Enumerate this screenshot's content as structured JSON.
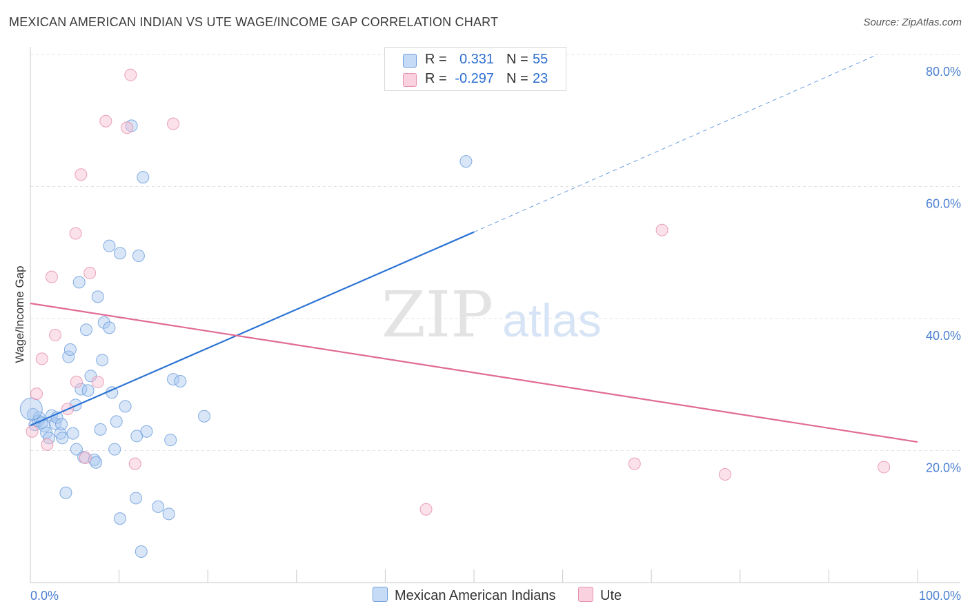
{
  "title": "MEXICAN AMERICAN INDIAN VS UTE WAGE/INCOME GAP CORRELATION CHART",
  "source": "Source: ZipAtlas.com",
  "watermark": {
    "zip": "ZIP",
    "atlas": "atlas"
  },
  "colors": {
    "blue_fill": "#a9c8ef",
    "blue_stroke": "#6f9fdc",
    "blue_line": "#2a72d4",
    "pink_fill": "#f5bdd0",
    "pink_stroke": "#e890ad",
    "pink_line": "#e06a96",
    "tick_text": "#4a7fd0",
    "grid": "#e2e2e2"
  },
  "legend": {
    "series": [
      {
        "r_label": "R =",
        "r_value": "0.331",
        "n_label": "N =",
        "n_value": "55",
        "swatch": "blue"
      },
      {
        "r_label": "R =",
        "r_value": "-0.297",
        "n_label": "N =",
        "n_value": "23",
        "swatch": "pink"
      }
    ]
  },
  "bottom_legend": [
    "Mexican American Indians",
    "Ute"
  ],
  "chart_data": {
    "type": "scatter",
    "title": "MEXICAN AMERICAN INDIAN VS UTE WAGE/INCOME GAP CORRELATION CHART",
    "xlabel": "",
    "ylabel": "Wage/Income Gap",
    "xlim": [
      0,
      100
    ],
    "ylim": [
      0,
      80
    ],
    "x_tick_labels": [
      "0.0%",
      "100.0%"
    ],
    "y_ticks": [
      20,
      40,
      60,
      80
    ],
    "y_tick_labels": [
      "20.0%",
      "40.0%",
      "60.0%",
      "80.0%"
    ],
    "grid": true,
    "legend_position": "top-center",
    "series": [
      {
        "name": "Mexican American Indians",
        "color": "blue",
        "r": 0.331,
        "n": 55,
        "trend": {
          "x0": 0,
          "y0": 23.8,
          "x1": 50,
          "y1": 53.1,
          "dashed_to_x": 95.5,
          "dashed_to_y": 80.0
        },
        "points": [
          [
            0.3,
            25.5
          ],
          [
            0.5,
            23.9
          ],
          [
            0.9,
            24.5
          ],
          [
            1.0,
            25.0
          ],
          [
            1.3,
            24.2
          ],
          [
            1.6,
            23.7
          ],
          [
            1.8,
            22.7
          ],
          [
            2.1,
            21.9
          ],
          [
            2.4,
            25.3
          ],
          [
            2.8,
            24.1
          ],
          [
            3.0,
            25.0
          ],
          [
            3.4,
            22.6
          ],
          [
            3.6,
            21.9
          ],
          [
            3.5,
            24.0
          ],
          [
            4.0,
            13.6
          ],
          [
            4.3,
            34.2
          ],
          [
            4.5,
            35.3
          ],
          [
            4.8,
            22.6
          ],
          [
            5.1,
            26.9
          ],
          [
            5.2,
            20.2
          ],
          [
            5.5,
            45.5
          ],
          [
            5.7,
            29.3
          ],
          [
            6.0,
            19.0
          ],
          [
            6.3,
            38.3
          ],
          [
            6.5,
            29.1
          ],
          [
            6.8,
            31.3
          ],
          [
            7.2,
            18.6
          ],
          [
            7.4,
            18.2
          ],
          [
            7.6,
            43.3
          ],
          [
            7.9,
            23.2
          ],
          [
            8.1,
            33.7
          ],
          [
            8.3,
            39.4
          ],
          [
            8.9,
            38.6
          ],
          [
            8.9,
            51.0
          ],
          [
            9.2,
            28.8
          ],
          [
            9.5,
            20.2
          ],
          [
            9.7,
            24.4
          ],
          [
            10.1,
            49.9
          ],
          [
            10.1,
            9.7
          ],
          [
            10.7,
            26.7
          ],
          [
            11.4,
            69.2
          ],
          [
            11.9,
            12.8
          ],
          [
            12.0,
            22.2
          ],
          [
            12.2,
            49.5
          ],
          [
            12.5,
            4.7
          ],
          [
            12.7,
            61.4
          ],
          [
            13.1,
            22.9
          ],
          [
            14.4,
            11.5
          ],
          [
            15.6,
            10.4
          ],
          [
            15.8,
            21.6
          ],
          [
            16.1,
            30.8
          ],
          [
            16.9,
            30.5
          ],
          [
            19.6,
            25.2
          ],
          [
            49.1,
            63.8
          ],
          [
            0.1,
            26.3
          ]
        ]
      },
      {
        "name": "Ute",
        "color": "pink",
        "r": -0.297,
        "n": 23,
        "trend": {
          "x0": 0,
          "y0": 42.3,
          "x1": 100,
          "y1": 21.3
        },
        "points": [
          [
            0.2,
            22.9
          ],
          [
            0.7,
            28.6
          ],
          [
            1.3,
            33.9
          ],
          [
            1.9,
            20.9
          ],
          [
            2.4,
            46.3
          ],
          [
            2.8,
            37.5
          ],
          [
            4.2,
            26.3
          ],
          [
            5.2,
            30.4
          ],
          [
            5.7,
            61.8
          ],
          [
            5.1,
            52.9
          ],
          [
            6.2,
            18.9
          ],
          [
            6.7,
            46.9
          ],
          [
            7.6,
            30.4
          ],
          [
            8.5,
            69.9
          ],
          [
            10.9,
            68.9
          ],
          [
            11.3,
            76.9
          ],
          [
            11.8,
            18.0
          ],
          [
            16.1,
            69.5
          ],
          [
            44.6,
            11.1
          ],
          [
            68.1,
            18.0
          ],
          [
            71.2,
            53.4
          ],
          [
            78.3,
            16.4
          ],
          [
            96.2,
            17.5
          ]
        ]
      }
    ]
  }
}
